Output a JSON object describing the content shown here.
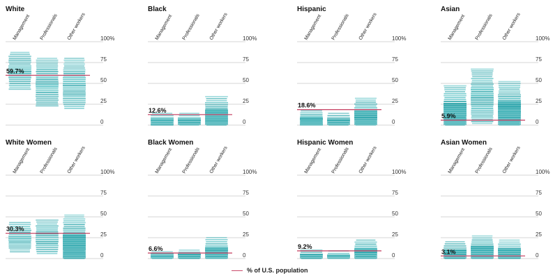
{
  "legend": {
    "label": "% of U.S. population",
    "color": "#c94a6a"
  },
  "chart_data": [
    {
      "type": "bar",
      "title": "White",
      "categories": [
        "Management",
        "Professionals",
        "Other workers"
      ],
      "ticks": [
        "100%",
        "75",
        "50",
        "25",
        "0"
      ],
      "ylim": [
        0,
        100
      ],
      "population_pct": 59.7,
      "population_label": "59.7%",
      "ranges": [
        [
          43,
          87
        ],
        [
          23,
          80
        ],
        [
          20,
          80
        ]
      ]
    },
    {
      "type": "bar",
      "title": "Black",
      "categories": [
        "Management",
        "Professionals",
        "Other workers"
      ],
      "ticks": [
        "100%",
        "75",
        "50",
        "25",
        "0"
      ],
      "ylim": [
        0,
        100
      ],
      "population_pct": 12.6,
      "population_label": "12.6%",
      "ranges": [
        [
          0,
          14
        ],
        [
          0,
          14
        ],
        [
          0,
          34
        ]
      ]
    },
    {
      "type": "bar",
      "title": "Hispanic",
      "categories": [
        "Management",
        "Professionals",
        "Other workers"
      ],
      "ticks": [
        "100%",
        "75",
        "50",
        "25",
        "0"
      ],
      "ylim": [
        0,
        100
      ],
      "population_pct": 18.6,
      "population_label": "18.6%",
      "ranges": [
        [
          0,
          17
        ],
        [
          0,
          14
        ],
        [
          0,
          32
        ]
      ]
    },
    {
      "type": "bar",
      "title": "Asian",
      "categories": [
        "Management",
        "Professionals",
        "Other workers"
      ],
      "ticks": [
        "100%",
        "75",
        "50",
        "25",
        "0"
      ],
      "ylim": [
        0,
        100
      ],
      "population_pct": 5.9,
      "population_label": "5.9%",
      "ranges": [
        [
          0,
          47
        ],
        [
          2,
          67
        ],
        [
          0,
          52
        ]
      ]
    },
    {
      "type": "bar",
      "title": "White Women",
      "categories": [
        "Management",
        "Professionals",
        "Other workers"
      ],
      "ticks": [
        "100%",
        "75",
        "50",
        "25",
        "0"
      ],
      "ylim": [
        0,
        100
      ],
      "population_pct": 30.3,
      "population_label": "30.3%",
      "ranges": [
        [
          8,
          43
        ],
        [
          6,
          46
        ],
        [
          0,
          52
        ]
      ]
    },
    {
      "type": "bar",
      "title": "Black Women",
      "categories": [
        "Management",
        "Professionals",
        "Other workers"
      ],
      "ticks": [
        "100%",
        "75",
        "50",
        "25",
        "0"
      ],
      "ylim": [
        0,
        100
      ],
      "population_pct": 6.6,
      "population_label": "6.6%",
      "ranges": [
        [
          0,
          8
        ],
        [
          0,
          10
        ],
        [
          0,
          25
        ]
      ]
    },
    {
      "type": "bar",
      "title": "Hispanic Women",
      "categories": [
        "Management",
        "Professionals",
        "Other workers"
      ],
      "ticks": [
        "100%",
        "75",
        "50",
        "25",
        "0"
      ],
      "ylim": [
        0,
        100
      ],
      "population_pct": 9.2,
      "population_label": "9.2%",
      "ranges": [
        [
          0,
          10
        ],
        [
          0,
          9
        ],
        [
          0,
          22
        ]
      ]
    },
    {
      "type": "bar",
      "title": "Asian Women",
      "categories": [
        "Management",
        "Professionals",
        "Other workers"
      ],
      "ticks": [
        "100%",
        "75",
        "50",
        "25",
        "0"
      ],
      "ylim": [
        0,
        100
      ],
      "population_pct": 3.1,
      "population_label": "3.1%",
      "ranges": [
        [
          0,
          20
        ],
        [
          0,
          27
        ],
        [
          0,
          22
        ]
      ]
    }
  ]
}
